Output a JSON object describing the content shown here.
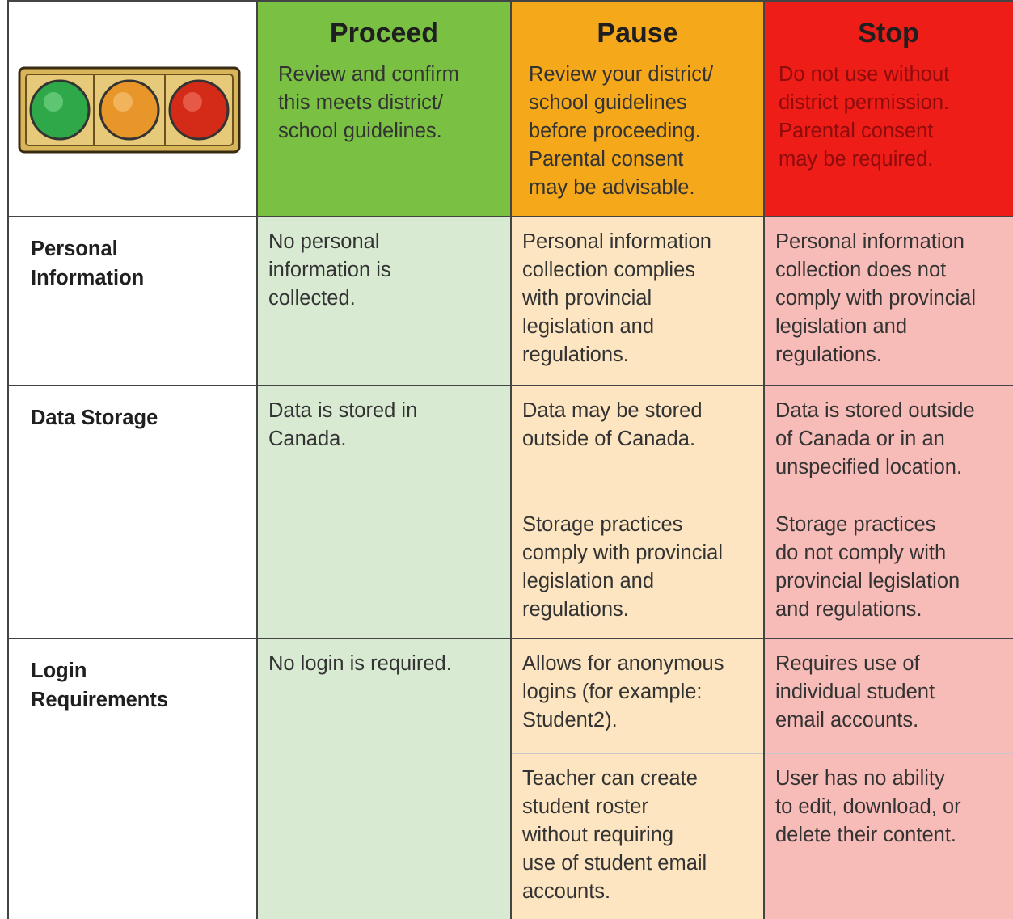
{
  "header": {
    "columns": [
      {
        "title": "Proceed",
        "text": "Review and confirm\nthis meets district/\nschool guidelines."
      },
      {
        "title": "Pause",
        "text": "Review your district/\nschool guidelines\nbefore proceeding.\nParental consent\nmay be advisable."
      },
      {
        "title": "Stop",
        "text": "Do not use without\ndistrict permission.\nParental consent\nmay be required."
      }
    ]
  },
  "rows": [
    {
      "label": "Personal\nInformation",
      "cells": [
        [
          "No personal\ninformation is\ncollected."
        ],
        [
          "Personal information\ncollection complies\nwith provincial\nlegislation and\nregulations."
        ],
        [
          "Personal information\ncollection does not\ncomply with provincial\nlegislation and\nregulations."
        ]
      ]
    },
    {
      "label": "Data Storage",
      "cells": [
        [
          "Data is stored in\nCanada."
        ],
        [
          "Data may be stored\noutside of Canada.",
          "Storage practices\ncomply with provincial\nlegislation and\nregulations."
        ],
        [
          "Data is stored outside\nof Canada or in an\nunspecified location.",
          "Storage practices\ndo not comply with\nprovincial legislation\nand regulations."
        ]
      ]
    },
    {
      "label": "Login\nRequirements",
      "cells": [
        [
          "No login is required."
        ],
        [
          "Allows for anonymous\nlogins (for example:\nStudent2).",
          "Teacher can create\nstudent roster\nwithout requiring\nuse of student email\naccounts."
        ],
        [
          "Requires use of\nindividual student\nemail accounts.",
          "User has no ability\nto edit, download, or\ndelete their content."
        ]
      ]
    }
  ]
}
